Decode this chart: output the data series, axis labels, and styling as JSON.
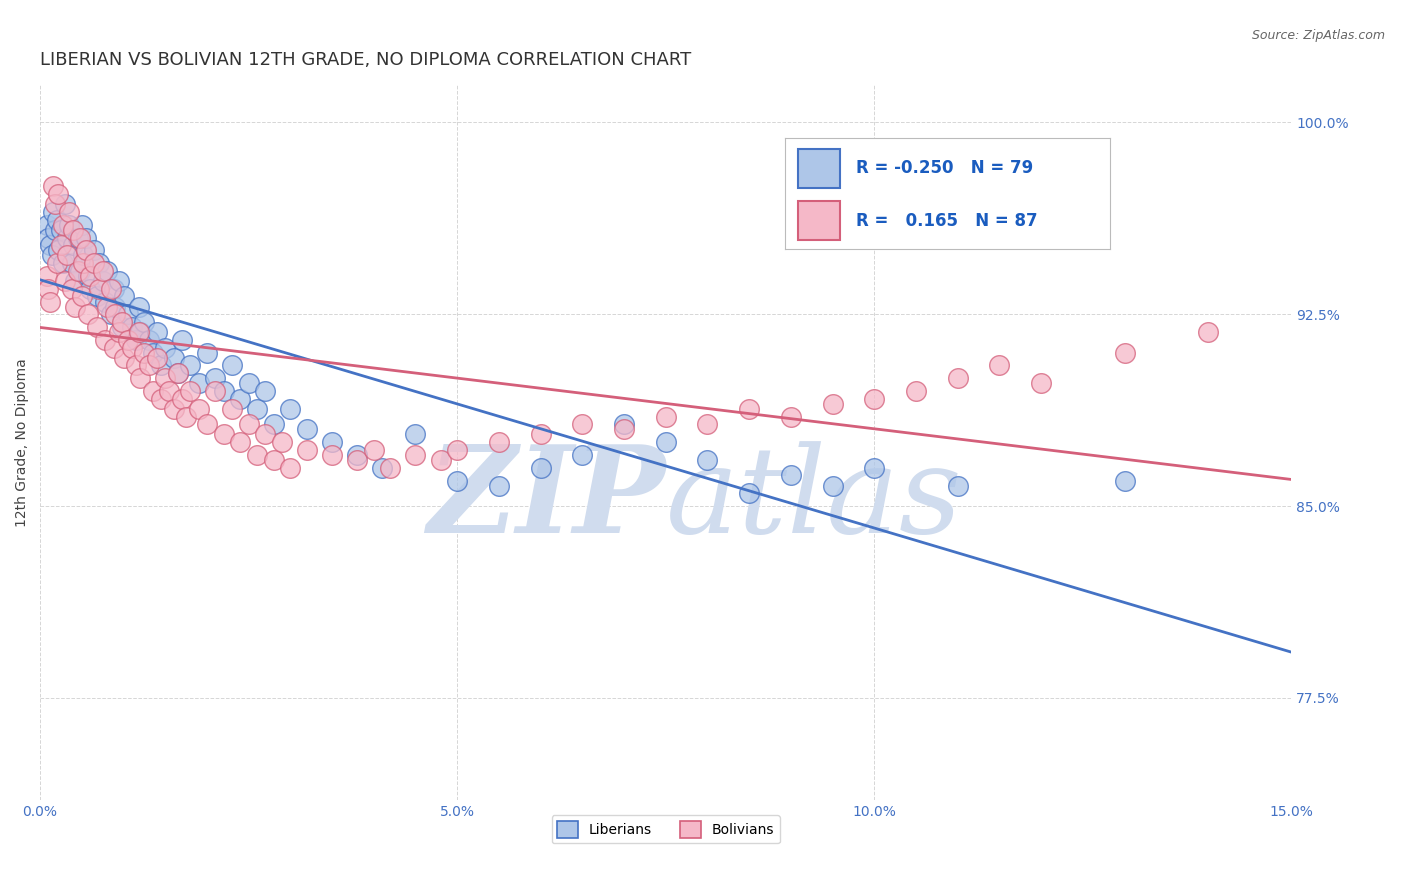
{
  "title": "LIBERIAN VS BOLIVIAN 12TH GRADE, NO DIPLOMA CORRELATION CHART",
  "source_text": "Source: ZipAtlas.com",
  "ylabel": "12th Grade, No Diploma",
  "liberian_R": -0.25,
  "liberian_N": 79,
  "bolivian_R": 0.165,
  "bolivian_N": 87,
  "liberian_color": "#aec6e8",
  "bolivian_color": "#f5b8c8",
  "liberian_line_color": "#4472c4",
  "bolivian_line_color": "#d45f7a",
  "xmin": 0.0,
  "xmax": 0.15,
  "ymin": 0.735,
  "ymax": 1.015,
  "yticks": [
    0.775,
    0.85,
    0.925,
    1.0
  ],
  "ytick_labels": [
    "77.5%",
    "85.0%",
    "92.5%",
    "100.0%"
  ],
  "xticks": [
    0.0,
    0.05,
    0.1,
    0.15
  ],
  "xtick_labels": [
    "0.0%",
    "5.0%",
    "10.0%",
    "15.0%"
  ],
  "background_color": "#ffffff",
  "grid_color": "#cccccc",
  "tick_color": "#4472c4",
  "title_fontsize": 13,
  "axis_label_fontsize": 10,
  "tick_fontsize": 10,
  "legend_r_color": "#1a5cbf",
  "watermark_color": "#d0dcee",
  "liberian_x": [
    0.0008,
    0.001,
    0.0012,
    0.0014,
    0.0015,
    0.0018,
    0.002,
    0.0022,
    0.0025,
    0.0028,
    0.003,
    0.0032,
    0.0035,
    0.0038,
    0.004,
    0.0042,
    0.0045,
    0.0048,
    0.005,
    0.0052,
    0.0055,
    0.0058,
    0.006,
    0.0065,
    0.0068,
    0.007,
    0.0075,
    0.0078,
    0.008,
    0.0085,
    0.0088,
    0.009,
    0.0095,
    0.0098,
    0.01,
    0.0105,
    0.011,
    0.0115,
    0.0118,
    0.012,
    0.0125,
    0.013,
    0.0135,
    0.014,
    0.0145,
    0.015,
    0.016,
    0.0165,
    0.017,
    0.018,
    0.019,
    0.02,
    0.021,
    0.022,
    0.023,
    0.024,
    0.025,
    0.026,
    0.027,
    0.028,
    0.03,
    0.032,
    0.035,
    0.038,
    0.041,
    0.045,
    0.05,
    0.055,
    0.06,
    0.065,
    0.07,
    0.075,
    0.08,
    0.085,
    0.09,
    0.095,
    0.1,
    0.11,
    0.13
  ],
  "liberian_y": [
    0.96,
    0.955,
    0.952,
    0.948,
    0.965,
    0.958,
    0.962,
    0.95,
    0.958,
    0.945,
    0.968,
    0.955,
    0.96,
    0.945,
    0.952,
    0.938,
    0.955,
    0.942,
    0.96,
    0.948,
    0.955,
    0.94,
    0.935,
    0.95,
    0.932,
    0.945,
    0.938,
    0.93,
    0.942,
    0.925,
    0.935,
    0.928,
    0.938,
    0.92,
    0.932,
    0.925,
    0.92,
    0.915,
    0.928,
    0.918,
    0.922,
    0.915,
    0.91,
    0.918,
    0.905,
    0.912,
    0.908,
    0.902,
    0.915,
    0.905,
    0.898,
    0.91,
    0.9,
    0.895,
    0.905,
    0.892,
    0.898,
    0.888,
    0.895,
    0.882,
    0.888,
    0.88,
    0.875,
    0.87,
    0.865,
    0.878,
    0.86,
    0.858,
    0.865,
    0.87,
    0.882,
    0.875,
    0.868,
    0.855,
    0.862,
    0.858,
    0.865,
    0.858,
    0.86
  ],
  "bolivian_x": [
    0.0008,
    0.001,
    0.0012,
    0.0015,
    0.0018,
    0.002,
    0.0022,
    0.0025,
    0.0028,
    0.003,
    0.0032,
    0.0035,
    0.0038,
    0.004,
    0.0042,
    0.0045,
    0.0048,
    0.005,
    0.0052,
    0.0055,
    0.0058,
    0.006,
    0.0065,
    0.0068,
    0.007,
    0.0075,
    0.0078,
    0.008,
    0.0085,
    0.0088,
    0.009,
    0.0095,
    0.0098,
    0.01,
    0.0105,
    0.011,
    0.0115,
    0.0118,
    0.012,
    0.0125,
    0.013,
    0.0135,
    0.014,
    0.0145,
    0.015,
    0.0155,
    0.016,
    0.0165,
    0.017,
    0.0175,
    0.018,
    0.019,
    0.02,
    0.021,
    0.022,
    0.023,
    0.024,
    0.025,
    0.026,
    0.027,
    0.028,
    0.029,
    0.03,
    0.032,
    0.035,
    0.038,
    0.04,
    0.042,
    0.045,
    0.048,
    0.05,
    0.055,
    0.06,
    0.065,
    0.07,
    0.075,
    0.08,
    0.085,
    0.09,
    0.095,
    0.1,
    0.105,
    0.11,
    0.115,
    0.12,
    0.13,
    0.14
  ],
  "bolivian_y": [
    0.94,
    0.935,
    0.93,
    0.975,
    0.968,
    0.945,
    0.972,
    0.952,
    0.96,
    0.938,
    0.948,
    0.965,
    0.935,
    0.958,
    0.928,
    0.942,
    0.955,
    0.932,
    0.945,
    0.95,
    0.925,
    0.94,
    0.945,
    0.92,
    0.935,
    0.942,
    0.915,
    0.928,
    0.935,
    0.912,
    0.925,
    0.918,
    0.922,
    0.908,
    0.915,
    0.912,
    0.905,
    0.918,
    0.9,
    0.91,
    0.905,
    0.895,
    0.908,
    0.892,
    0.9,
    0.895,
    0.888,
    0.902,
    0.892,
    0.885,
    0.895,
    0.888,
    0.882,
    0.895,
    0.878,
    0.888,
    0.875,
    0.882,
    0.87,
    0.878,
    0.868,
    0.875,
    0.865,
    0.872,
    0.87,
    0.868,
    0.872,
    0.865,
    0.87,
    0.868,
    0.872,
    0.875,
    0.878,
    0.882,
    0.88,
    0.885,
    0.882,
    0.888,
    0.885,
    0.89,
    0.892,
    0.895,
    0.9,
    0.905,
    0.898,
    0.91,
    0.918
  ]
}
